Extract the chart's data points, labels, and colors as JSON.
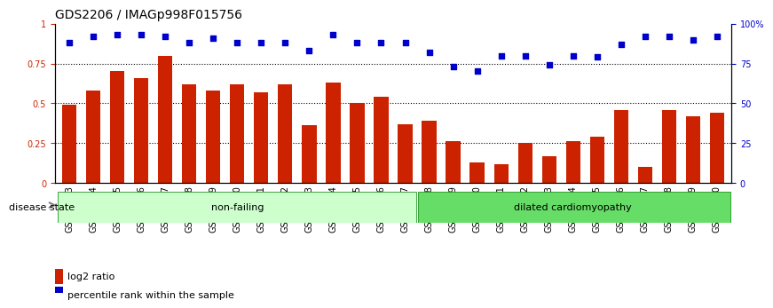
{
  "title": "GDS2206 / IMAGp998F015756",
  "categories": [
    "GSM82393",
    "GSM82394",
    "GSM82395",
    "GSM82396",
    "GSM82397",
    "GSM82398",
    "GSM82399",
    "GSM82400",
    "GSM82401",
    "GSM82402",
    "GSM82403",
    "GSM82404",
    "GSM82405",
    "GSM82406",
    "GSM82407",
    "GSM82408",
    "GSM82409",
    "GSM82410",
    "GSM82411",
    "GSM82412",
    "GSM82413",
    "GSM82414",
    "GSM82415",
    "GSM82416",
    "GSM82417",
    "GSM82418",
    "GSM82419",
    "GSM82420"
  ],
  "bar_values": [
    0.49,
    0.58,
    0.7,
    0.66,
    0.8,
    0.62,
    0.58,
    0.62,
    0.57,
    0.62,
    0.36,
    0.63,
    0.5,
    0.54,
    0.37,
    0.39,
    0.26,
    0.13,
    0.12,
    0.25,
    0.17,
    0.26,
    0.29,
    0.46,
    0.1,
    0.46,
    0.42,
    0.44
  ],
  "dot_values": [
    0.88,
    0.92,
    0.93,
    0.93,
    0.92,
    0.88,
    0.91,
    0.88,
    0.88,
    0.88,
    0.83,
    0.93,
    0.88,
    0.88,
    0.88,
    0.82,
    0.73,
    0.7,
    0.8,
    0.8,
    0.74,
    0.8,
    0.79,
    0.87,
    0.92,
    0.92,
    0.9,
    0.92
  ],
  "non_failing_count": 15,
  "dilated_count": 13,
  "bar_color": "#cc2200",
  "dot_color": "#0000cc",
  "non_failing_color": "#ccffcc",
  "dilated_color": "#66dd66",
  "bg_color": "#ffffff",
  "ylim": [
    0,
    1.0
  ],
  "yticks_left": [
    0,
    0.25,
    0.5,
    0.75,
    1.0
  ],
  "ytick_labels_left": [
    "0",
    "0.25",
    "0.5",
    "0.75",
    "1"
  ],
  "yticks_right": [
    0,
    0.25,
    0.5,
    0.75,
    1.0
  ],
  "ytick_labels_right": [
    "0",
    "25",
    "50",
    "75",
    "100%"
  ],
  "title_fontsize": 10,
  "tick_fontsize": 7,
  "legend_fontsize": 8,
  "disease_label": "disease state",
  "non_failing_label": "non-failing",
  "dilated_label": "dilated cardiomyopathy",
  "legend_bar": "log2 ratio",
  "legend_dot": "percentile rank within the sample"
}
